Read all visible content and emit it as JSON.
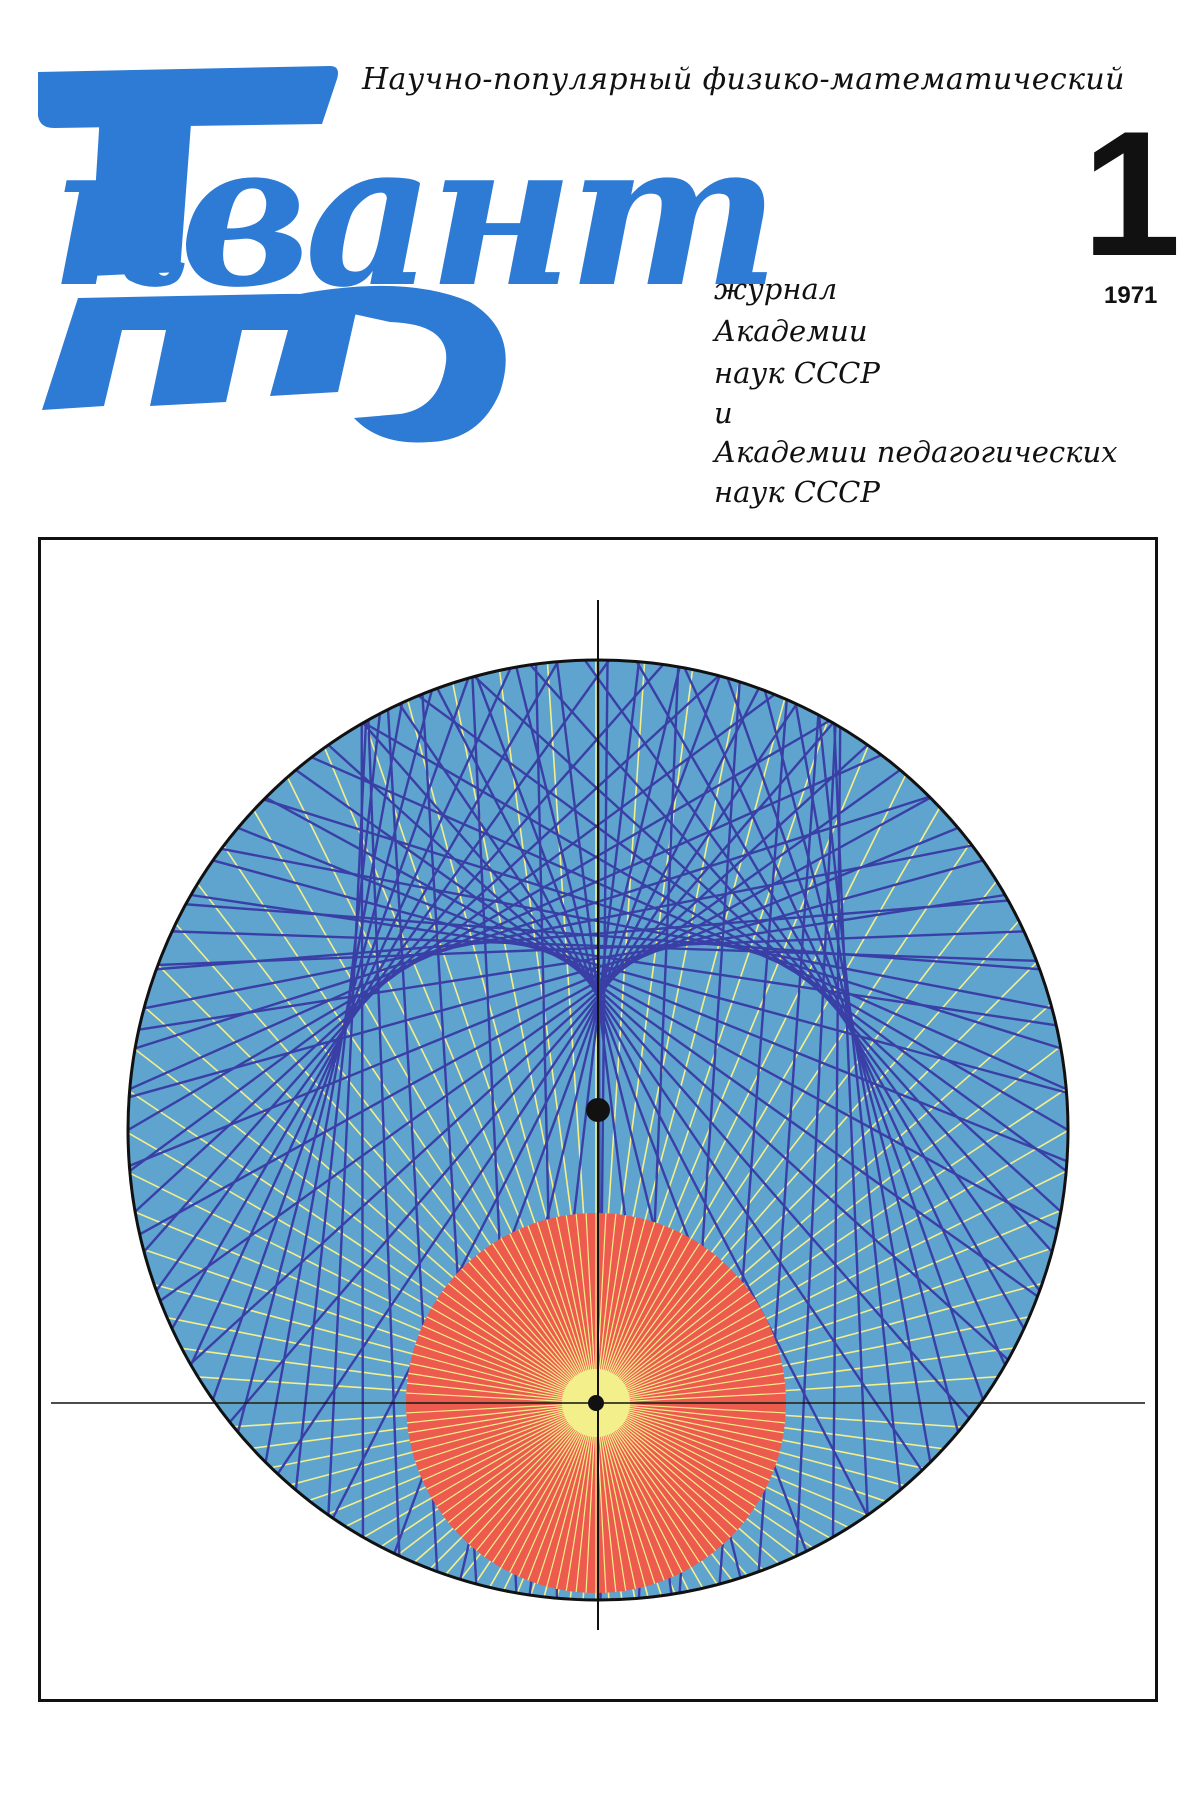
{
  "magazine": {
    "title": "квант",
    "subtitle": "Научно-популярный физико-математический",
    "issue_number": "1",
    "year": "1971",
    "publisher_lines": [
      "журнал",
      "Академии",
      "наук СССР",
      "и",
      "Академии педагогических",
      "наук СССР"
    ]
  },
  "colors": {
    "brand_blue": "#2d7bd4",
    "circle_fill": "#5fa3cf",
    "envelope_lines": "#3a3fa6",
    "inner_disc": "#ec5b4e",
    "rays": "#f3ef8a",
    "ink": "#111111"
  },
  "artwork": {
    "description_icon": "cardioid-envelope-illustration"
  }
}
